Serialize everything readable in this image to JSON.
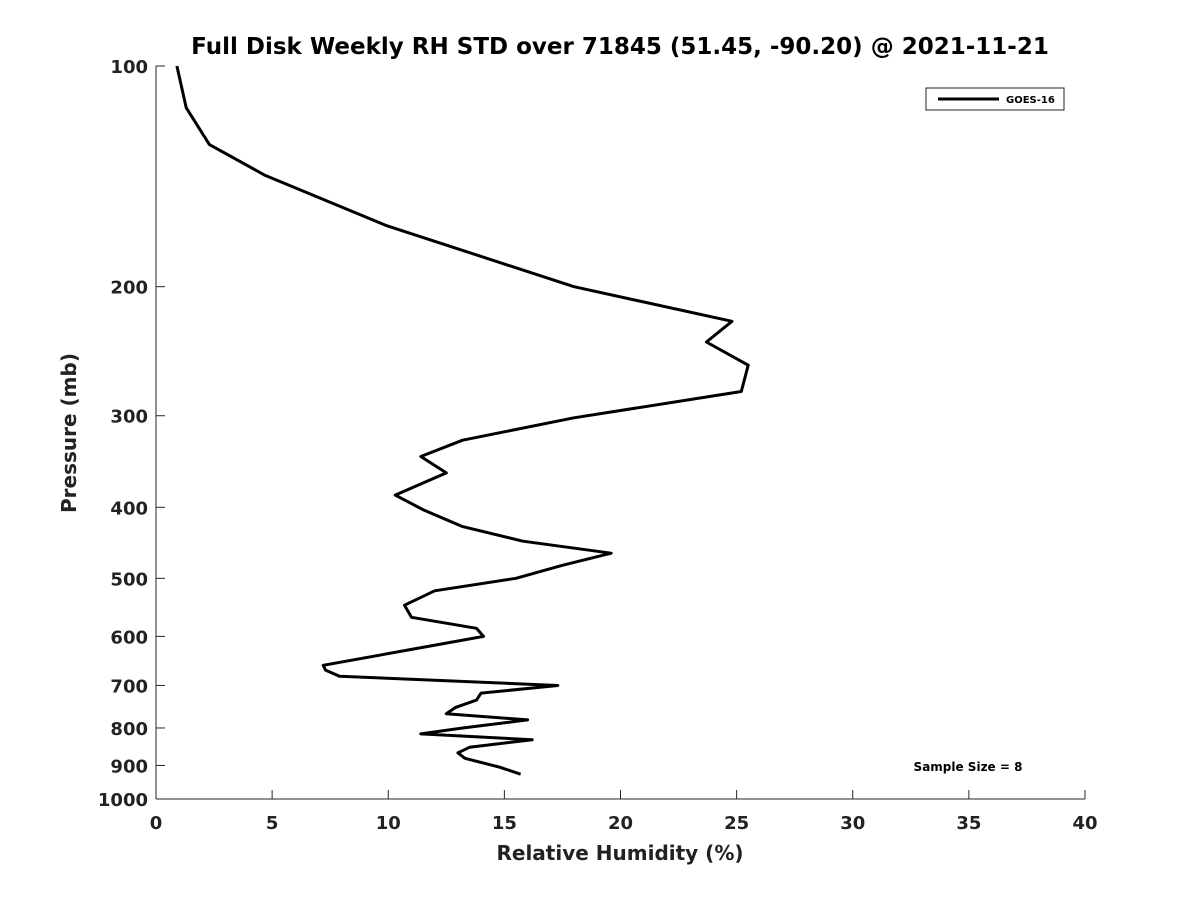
{
  "chart_data": {
    "type": "line",
    "title": "Full Disk Weekly RH STD over 71845 (51.45, -90.20) @ 2021-11-21",
    "xlabel": "Relative Humidity (%)",
    "ylabel": "Pressure (mb)",
    "xlim": [
      0,
      40
    ],
    "ylim": [
      100,
      1000
    ],
    "y_scale": "log",
    "y_reversed": true,
    "xticks": [
      0,
      5,
      10,
      15,
      20,
      25,
      30,
      35,
      40
    ],
    "yticks": [
      100,
      200,
      300,
      400,
      500,
      600,
      700,
      800,
      900,
      1000
    ],
    "grid": false,
    "legend_position": "top-right",
    "line_color": "#000000",
    "series": [
      {
        "name": "GOES-16",
        "x": [
          0.9,
          1.3,
          2.3,
          4.7,
          9.9,
          18.0,
          24.8,
          23.7,
          25.5,
          25.2,
          18.0,
          13.2,
          11.4,
          12.5,
          10.3,
          11.5,
          13.2,
          15.8,
          19.6,
          17.5,
          15.5,
          12.0,
          10.7,
          11.0,
          13.8,
          14.1,
          11.0,
          7.2,
          7.3,
          7.9,
          17.3,
          14.0,
          13.8,
          12.9,
          12.5,
          16.0,
          13.2,
          11.4,
          16.2,
          13.5,
          13.0,
          13.3,
          14.8,
          15.7
        ],
        "y": [
          100,
          114,
          128,
          141,
          165,
          200,
          223,
          238,
          256,
          278,
          302,
          324,
          341,
          359,
          385,
          403,
          425,
          445,
          462,
          480,
          500,
          520,
          544,
          565,
          585,
          600,
          625,
          657,
          667,
          680,
          700,
          717,
          733,
          750,
          765,
          780,
          800,
          815,
          830,
          850,
          865,
          880,
          905,
          925
        ]
      }
    ],
    "annotations": [
      "Sample Size = 8"
    ]
  }
}
